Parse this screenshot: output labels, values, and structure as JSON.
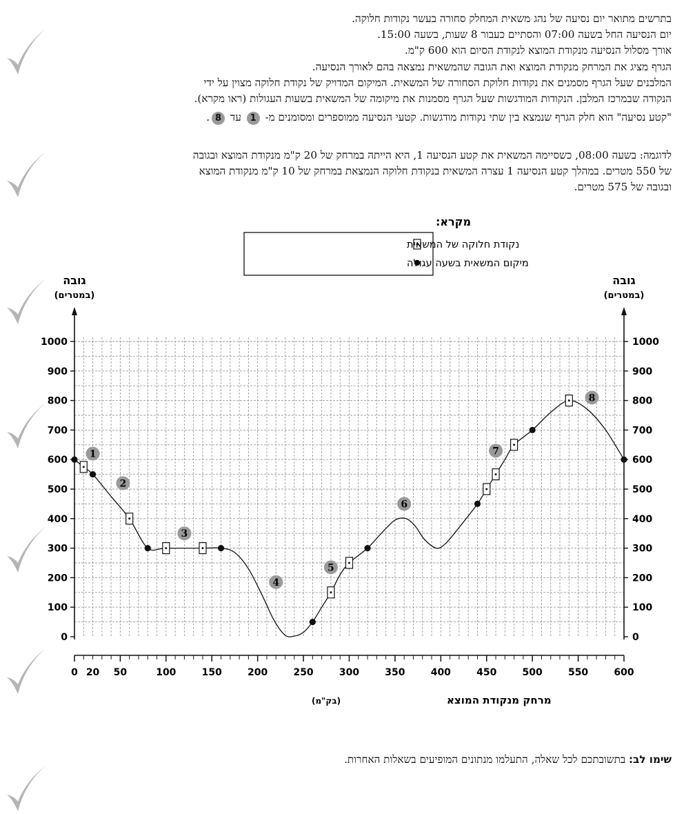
{
  "intro": {
    "lines": [
      "בתרשים מתואר יום נסיעה של נהג משאית המחלק סחורה בעשר נקודות חלוקה.",
      "יום הנסיעה החל בשעה 07:00 והסתיים כעבור 8 שעות, בשעה 15:00.",
      "אורך מסלול הנסיעה מנקודת המוצא לנקודת הסיום הוא 600 ק\"מ.",
      "הגרף מציג את המרחק מנקודת המוצא ואת הגובה שהמשאית נמצאה בהם לאורך הנסיעה.",
      "המלבנים שעל הגרף מסמנים את נקודות חלוקת הסחורה של המשאית. המיקום המדויק של נקודת חלוקה מצוין על ידי",
      "הנקודה שבמרכז המלבן. הנקודות המודגשות שעל הגרף מסמנות את מיקומה של המשאית בשעות העגולות (ראו מקרא)."
    ],
    "segment_line_a": "\"קטע נסיעה\" הוא חלק הגרף שנמצא בין שתי נקודות מודגשות. קטעי הנסיעה ממוספרים ומסומנים מ-",
    "segment_badge_from": "1",
    "segment_line_b": "עד",
    "segment_badge_to": "8",
    "segment_line_end": "."
  },
  "example": {
    "lines": [
      "לדוגמה: בשעה 08:00, כשסיימה המשאית את קטע הנסיעה 1, היא הייתה במרחק של 20 ק\"מ מנקודת המוצא ובגובה",
      "של 550 מטרים. במהלך קטע הנסיעה 1 עצרה המשאית בנקודת חלוקה הנמצאת במרחק של 10 ק\"מ מנקודת המוצא",
      "ובגובה של 575 מטרים."
    ]
  },
  "note": {
    "label": "שימו לב:",
    "text": " בתשובתכם לכל שאלה, התעלמו מנתונים המופיעים בשאלות האחרות."
  },
  "chart_data": {
    "type": "line",
    "legend": {
      "title": "מקרא:",
      "items": [
        {
          "symbol": "box-with-dot",
          "label": "נקודת חלוקה של המשאית"
        },
        {
          "symbol": "filled-dot",
          "label": "מיקום המשאית בשעה עגולה"
        }
      ]
    },
    "ylabel_left": "גובה",
    "yunit_left": "(במטרים)",
    "ylabel_right": "גובה",
    "yunit_right": "(במטרים)",
    "xlabel": "מרחק מנקודת המוצא",
    "xunit": "(בק\"מ)",
    "ylim": [
      0,
      1000
    ],
    "xlim": [
      0,
      600
    ],
    "y_ticks": [
      0,
      100,
      200,
      300,
      400,
      500,
      600,
      700,
      800,
      900,
      1000
    ],
    "x_tick_labels": [
      0,
      20,
      50,
      100,
      150,
      200,
      250,
      300,
      350,
      400,
      450,
      500,
      550,
      600
    ],
    "grid": true,
    "route": [
      [
        0,
        600
      ],
      [
        10,
        575
      ],
      [
        20,
        550
      ],
      [
        40,
        475
      ],
      [
        60,
        400
      ],
      [
        80,
        300
      ],
      [
        100,
        300
      ],
      [
        140,
        300
      ],
      [
        160,
        300
      ],
      [
        175,
        285
      ],
      [
        190,
        230
      ],
      [
        205,
        140
      ],
      [
        218,
        55
      ],
      [
        230,
        5
      ],
      [
        240,
        2
      ],
      [
        250,
        15
      ],
      [
        260,
        50
      ],
      [
        270,
        100
      ],
      [
        280,
        150
      ],
      [
        290,
        210
      ],
      [
        300,
        250
      ],
      [
        320,
        300
      ],
      [
        335,
        350
      ],
      [
        350,
        395
      ],
      [
        362,
        400
      ],
      [
        372,
        375
      ],
      [
        382,
        330
      ],
      [
        395,
        300
      ],
      [
        405,
        315
      ],
      [
        420,
        370
      ],
      [
        440,
        450
      ],
      [
        450,
        500
      ],
      [
        460,
        550
      ],
      [
        470,
        600
      ],
      [
        480,
        650
      ],
      [
        500,
        700
      ],
      [
        520,
        760
      ],
      [
        540,
        800
      ],
      [
        560,
        770
      ],
      [
        580,
        700
      ],
      [
        600,
        600
      ]
    ],
    "hour_points": [
      [
        0,
        600
      ],
      [
        20,
        550
      ],
      [
        80,
        300
      ],
      [
        160,
        300
      ],
      [
        260,
        50
      ],
      [
        320,
        300
      ],
      [
        440,
        450
      ],
      [
        500,
        700
      ],
      [
        600,
        600
      ]
    ],
    "distribution_points": [
      [
        10,
        575
      ],
      [
        60,
        400
      ],
      [
        100,
        300
      ],
      [
        140,
        300
      ],
      [
        280,
        150
      ],
      [
        300,
        250
      ],
      [
        450,
        500
      ],
      [
        460,
        550
      ],
      [
        480,
        650
      ],
      [
        540,
        800
      ]
    ],
    "segment_labels": [
      {
        "label": "1",
        "x": 20,
        "y": 620
      },
      {
        "label": "2",
        "x": 53,
        "y": 520
      },
      {
        "label": "3",
        "x": 120,
        "y": 350
      },
      {
        "label": "4",
        "x": 220,
        "y": 185
      },
      {
        "label": "5",
        "x": 280,
        "y": 235
      },
      {
        "label": "6",
        "x": 360,
        "y": 450
      },
      {
        "label": "7",
        "x": 460,
        "y": 630
      },
      {
        "label": "8",
        "x": 565,
        "y": 810
      }
    ]
  }
}
